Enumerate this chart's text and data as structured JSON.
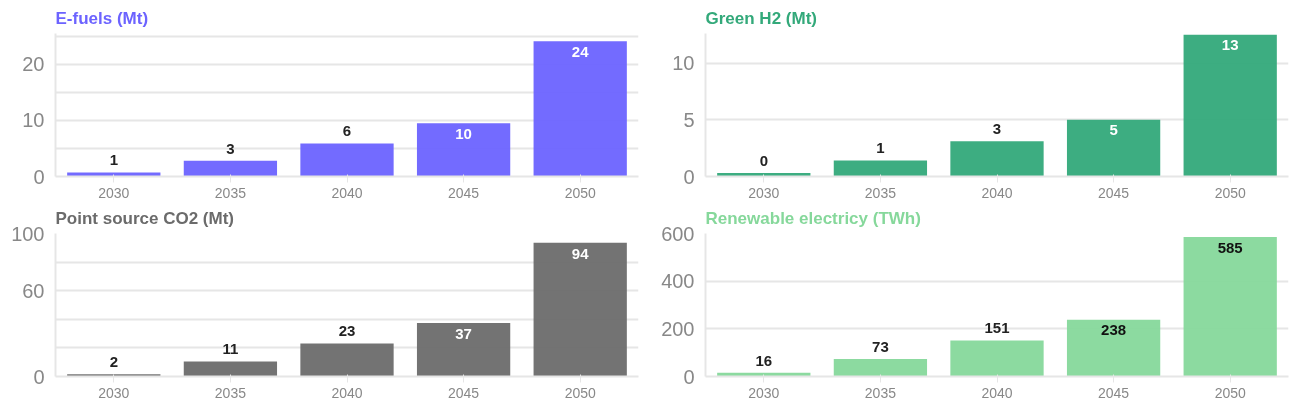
{
  "chart_data": [
    {
      "type": "bar",
      "title": "E-fuels (Mt)",
      "categories": [
        "2030",
        "2035",
        "2040",
        "2045",
        "2050"
      ],
      "series": [
        {
          "color": "#6c63ff",
          "values": [
            0.7,
            2.8,
            5.9,
            9.5,
            24.1
          ]
        }
      ],
      "value_labels": [
        "1",
        "3",
        "6",
        "10",
        "24"
      ],
      "ylim": [
        0,
        25.5
      ],
      "yticks": [
        0,
        {
          "value": 5,
          "label": null
        },
        10,
        {
          "value": 15,
          "label": null
        },
        20,
        {
          "value": 25,
          "label": null
        }
      ],
      "grid": "y"
    },
    {
      "type": "bar",
      "title": "Green H2 (Mt)",
      "categories": [
        "2030",
        "2035",
        "2040",
        "2045",
        "2050"
      ],
      "series": [
        {
          "color": "#33a97a",
          "values": [
            0.3,
            1.4,
            3.1,
            5.0,
            12.5
          ]
        }
      ],
      "value_labels": [
        "0",
        "1",
        "3",
        "5",
        "13"
      ],
      "ylim": [
        0,
        12.6
      ],
      "yticks": [
        0,
        5,
        10
      ],
      "grid": "y"
    },
    {
      "type": "bar",
      "title": "Point source CO2 (Mt)",
      "categories": [
        "2030",
        "2035",
        "2040",
        "2045",
        "2050"
      ],
      "series": [
        {
          "color": "#6b6b6b",
          "values": [
            1.5,
            10.5,
            23,
            37.5,
            93.5
          ]
        }
      ],
      "value_labels": [
        "2",
        "11",
        "23",
        "37",
        "94"
      ],
      "ylim": [
        0,
        100
      ],
      "yticks": [
        0,
        {
          "value": 20,
          "label": null
        },
        {
          "value": 40,
          "label": null
        },
        60,
        {
          "value": 80,
          "label": null
        },
        100
      ],
      "grid": "y"
    },
    {
      "type": "bar",
      "title": "Renewable electricy (TWh)",
      "categories": [
        "2030",
        "2035",
        "2040",
        "2045",
        "2050"
      ],
      "series": [
        {
          "color": "#86d89b",
          "values": [
            16,
            73,
            151,
            238,
            585
          ]
        }
      ],
      "value_labels": [
        "16",
        "73",
        "151",
        "238",
        "585"
      ],
      "ylim": [
        0,
        600
      ],
      "yticks": [
        0,
        200,
        400,
        600
      ],
      "grid": "y"
    }
  ]
}
